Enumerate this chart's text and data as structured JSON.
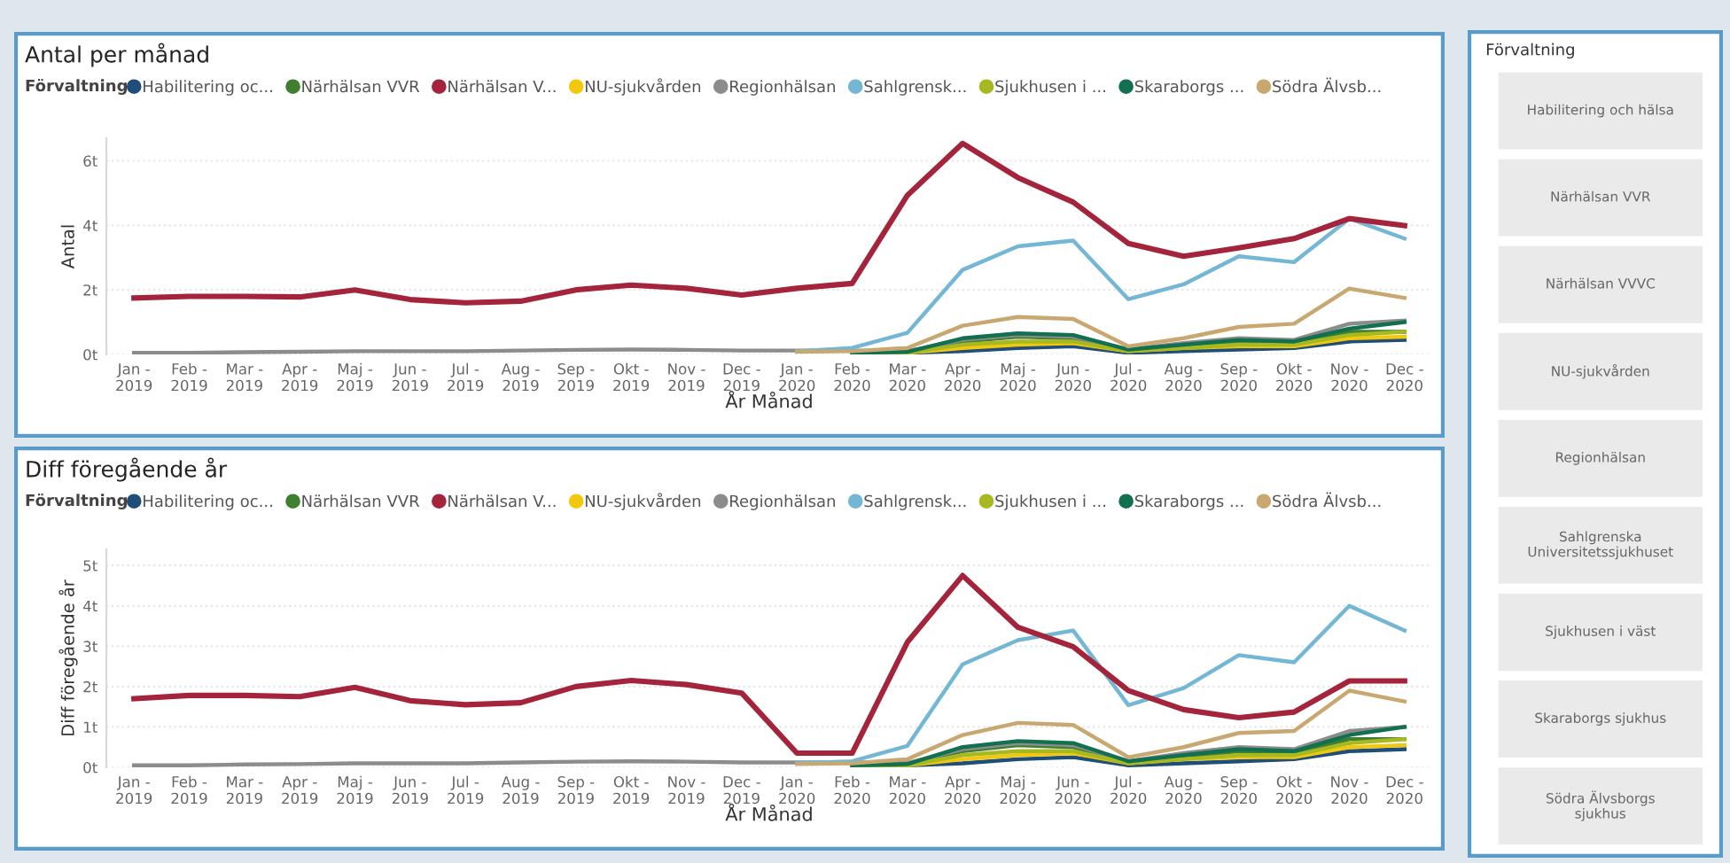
{
  "chart_data": [
    {
      "type": "line",
      "title": "Antal per månad",
      "ylabel": "Antal",
      "xlabel": "År Månad",
      "legend_title": "Förvaltning",
      "legend": "top left",
      "grid": "y",
      "categories": [
        "Jan -\n2019",
        "Feb -\n2019",
        "Mar -\n2019",
        "Apr -\n2019",
        "Maj -\n2019",
        "Jun -\n2019",
        "Jul -\n2019",
        "Aug -\n2019",
        "Sep -\n2019",
        "Okt -\n2019",
        "Nov -\n2019",
        "Dec -\n2019",
        "Jan -\n2020",
        "Feb -\n2020",
        "Mar -\n2020",
        "Apr -\n2020",
        "Maj -\n2020",
        "Jun -\n2020",
        "Jul -\n2020",
        "Aug -\n2020",
        "Sep -\n2020",
        "Okt -\n2020",
        "Nov -\n2020",
        "Dec -\n2020"
      ],
      "ylim": [
        0,
        6.7
      ],
      "yticks": [
        {
          "value": 0,
          "label": "0t"
        },
        {
          "value": 2,
          "label": "2t"
        },
        {
          "value": 4,
          "label": "4t"
        },
        {
          "value": 6,
          "label": "6t"
        }
      ],
      "series": [
        {
          "name": "Habilitering oc...",
          "color": "#1f4e79",
          "values": [
            null,
            null,
            null,
            null,
            null,
            null,
            null,
            null,
            null,
            null,
            null,
            null,
            null,
            0.02,
            0.05,
            0.1,
            0.2,
            0.25,
            0.05,
            0.1,
            0.15,
            0.2,
            0.4,
            0.45
          ]
        },
        {
          "name": "Närhälsan VVR",
          "color": "#3f7f2f",
          "values": [
            null,
            null,
            null,
            null,
            null,
            null,
            null,
            null,
            null,
            null,
            null,
            null,
            null,
            0.05,
            0.1,
            0.4,
            0.55,
            0.5,
            0.1,
            0.25,
            0.4,
            0.35,
            0.7,
            0.7
          ]
        },
        {
          "name": "Närhälsan V...",
          "color": "#a4243b",
          "values": [
            1.75,
            1.8,
            1.8,
            1.78,
            2.0,
            1.7,
            1.6,
            1.65,
            2.0,
            2.15,
            2.05,
            1.84,
            2.05,
            2.2,
            4.93,
            6.54,
            5.48,
            4.72,
            3.44,
            3.04,
            3.3,
            3.59,
            4.21,
            3.99
          ]
        },
        {
          "name": "NU-sjukvården",
          "color": "#f2c80f",
          "values": [
            null,
            null,
            null,
            null,
            null,
            null,
            null,
            null,
            null,
            null,
            null,
            null,
            null,
            0.02,
            0.05,
            0.2,
            0.3,
            0.35,
            0.1,
            0.2,
            0.25,
            0.25,
            0.5,
            0.55
          ]
        },
        {
          "name": "Regionhälsan",
          "color": "#8c8c8c",
          "values": [
            0.05,
            0.05,
            0.07,
            0.08,
            0.1,
            0.1,
            0.1,
            0.12,
            0.14,
            0.15,
            0.14,
            0.12,
            0.12,
            0.12,
            0.1,
            0.45,
            0.6,
            0.55,
            0.15,
            0.35,
            0.5,
            0.45,
            0.95,
            1.05
          ]
        },
        {
          "name": "Sahlgrensk...",
          "color": "#73b7d4",
          "values": [
            null,
            null,
            null,
            null,
            null,
            null,
            null,
            null,
            null,
            null,
            null,
            null,
            0.1,
            0.2,
            0.67,
            2.62,
            3.35,
            3.53,
            1.71,
            2.17,
            3.04,
            2.86,
            4.21,
            3.59
          ]
        },
        {
          "name": "Sjukhusen i ...",
          "color": "#a8b820",
          "values": [
            null,
            null,
            null,
            null,
            null,
            null,
            null,
            null,
            null,
            null,
            null,
            null,
            null,
            0.02,
            0.05,
            0.3,
            0.4,
            0.4,
            0.1,
            0.2,
            0.3,
            0.3,
            0.6,
            0.7
          ]
        },
        {
          "name": "Skaraborgs ...",
          "color": "#107050",
          "values": [
            null,
            null,
            null,
            null,
            null,
            null,
            null,
            null,
            null,
            null,
            null,
            null,
            null,
            0.05,
            0.08,
            0.5,
            0.65,
            0.6,
            0.15,
            0.3,
            0.45,
            0.4,
            0.8,
            1.0
          ]
        },
        {
          "name": "Södra Älvsb...",
          "color": "#c8a870",
          "values": [
            null,
            null,
            null,
            null,
            null,
            null,
            null,
            null,
            null,
            null,
            null,
            null,
            0.08,
            0.1,
            0.2,
            0.89,
            1.16,
            1.1,
            0.25,
            0.5,
            0.85,
            0.95,
            2.04,
            1.75
          ]
        }
      ]
    },
    {
      "type": "line",
      "title": "Diff föregående år",
      "ylabel": "Diff föregående år",
      "xlabel": "År Månad",
      "legend_title": "Förvaltning",
      "legend": "top left",
      "grid": "y",
      "categories": [
        "Jan -\n2019",
        "Feb -\n2019",
        "Mar -\n2019",
        "Apr -\n2019",
        "Maj -\n2019",
        "Jun -\n2019",
        "Jul -\n2019",
        "Aug -\n2019",
        "Sep -\n2019",
        "Okt -\n2019",
        "Nov -\n2019",
        "Dec -\n2019",
        "Jan -\n2020",
        "Feb -\n2020",
        "Mar -\n2020",
        "Apr -\n2020",
        "Maj -\n2020",
        "Jun -\n2020",
        "Jul -\n2020",
        "Aug -\n2020",
        "Sep -\n2020",
        "Okt -\n2020",
        "Nov -\n2020",
        "Dec -\n2020"
      ],
      "ylim": [
        0,
        5.4
      ],
      "yticks": [
        {
          "value": 0,
          "label": "0t"
        },
        {
          "value": 1,
          "label": "1t"
        },
        {
          "value": 2,
          "label": "2t"
        },
        {
          "value": 3,
          "label": "3t"
        },
        {
          "value": 4,
          "label": "4t"
        },
        {
          "value": 5,
          "label": "5t"
        }
      ],
      "series": [
        {
          "name": "Habilitering oc...",
          "color": "#1f4e79",
          "values": [
            null,
            null,
            null,
            null,
            null,
            null,
            null,
            null,
            null,
            null,
            null,
            null,
            null,
            0.02,
            0.05,
            0.1,
            0.2,
            0.25,
            0.05,
            0.1,
            0.15,
            0.2,
            0.4,
            0.45
          ]
        },
        {
          "name": "Närhälsan VVR",
          "color": "#3f7f2f",
          "values": [
            null,
            null,
            null,
            null,
            null,
            null,
            null,
            null,
            null,
            null,
            null,
            null,
            null,
            0.05,
            0.1,
            0.4,
            0.55,
            0.5,
            0.1,
            0.25,
            0.4,
            0.35,
            0.7,
            0.7
          ]
        },
        {
          "name": "Närhälsan V...",
          "color": "#a4243b",
          "values": [
            1.7,
            1.78,
            1.78,
            1.75,
            1.98,
            1.65,
            1.55,
            1.6,
            2.0,
            2.15,
            2.05,
            1.84,
            0.35,
            0.35,
            3.1,
            4.75,
            3.47,
            2.99,
            1.9,
            1.43,
            1.23,
            1.37,
            2.14,
            2.14
          ]
        },
        {
          "name": "NU-sjukvården",
          "color": "#f2c80f",
          "values": [
            null,
            null,
            null,
            null,
            null,
            null,
            null,
            null,
            null,
            null,
            null,
            null,
            null,
            0.02,
            0.05,
            0.2,
            0.3,
            0.35,
            0.1,
            0.2,
            0.25,
            0.25,
            0.5,
            0.55
          ]
        },
        {
          "name": "Regionhälsan",
          "color": "#8c8c8c",
          "values": [
            0.05,
            0.05,
            0.07,
            0.08,
            0.1,
            0.1,
            0.1,
            0.12,
            0.14,
            0.15,
            0.14,
            0.12,
            0.12,
            0.12,
            0.1,
            0.45,
            0.6,
            0.55,
            0.15,
            0.35,
            0.5,
            0.45,
            0.9,
            1.0
          ]
        },
        {
          "name": "Sahlgrensk...",
          "color": "#73b7d4",
          "values": [
            null,
            null,
            null,
            null,
            null,
            null,
            null,
            null,
            null,
            null,
            null,
            null,
            0.1,
            0.15,
            0.53,
            2.55,
            3.15,
            3.39,
            1.54,
            1.96,
            2.78,
            2.6,
            4.0,
            3.39
          ]
        },
        {
          "name": "Sjukhusen i ...",
          "color": "#a8b820",
          "values": [
            null,
            null,
            null,
            null,
            null,
            null,
            null,
            null,
            null,
            null,
            null,
            null,
            null,
            0.02,
            0.05,
            0.3,
            0.4,
            0.4,
            0.1,
            0.2,
            0.3,
            0.3,
            0.6,
            0.7
          ]
        },
        {
          "name": "Skaraborgs ...",
          "color": "#107050",
          "values": [
            null,
            null,
            null,
            null,
            null,
            null,
            null,
            null,
            null,
            null,
            null,
            null,
            null,
            0.05,
            0.08,
            0.5,
            0.65,
            0.6,
            0.15,
            0.3,
            0.45,
            0.4,
            0.8,
            1.0
          ]
        },
        {
          "name": "Södra Älvsb...",
          "color": "#c8a870",
          "values": [
            null,
            null,
            null,
            null,
            null,
            null,
            null,
            null,
            null,
            null,
            null,
            null,
            0.08,
            0.1,
            0.2,
            0.8,
            1.1,
            1.05,
            0.25,
            0.5,
            0.85,
            0.9,
            1.9,
            1.63
          ]
        }
      ]
    },
    {
      "type": "other",
      "title": "Förvaltning",
      "annotations": [
        "Habilitering och hälsa",
        "Närhälsan VVR",
        "Närhälsan VVVC",
        "NU-sjukvården",
        "Regionhälsan",
        "Sahlgrenska Universitetssjukhuset",
        "Sjukhusen i väst",
        "Skaraborgs sjukhus",
        "Södra Älvsborgs sjukhus"
      ]
    }
  ]
}
